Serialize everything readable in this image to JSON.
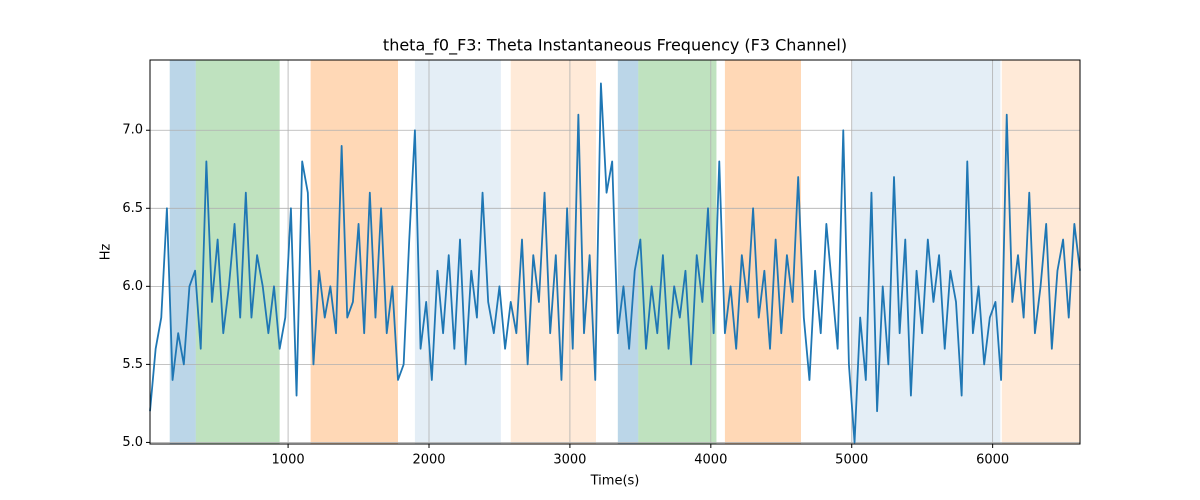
{
  "chart_data": {
    "type": "line",
    "title": "theta_f0_F3: Theta Instantaneous Frequency (F3 Channel)",
    "x_label": "Time(s)",
    "y_label": "Hz",
    "xlim": [
      20,
      6620
    ],
    "ylim": [
      4.99,
      7.45
    ],
    "xticks": [
      1000,
      2000,
      3000,
      4000,
      5000,
      6000
    ],
    "yticks": [
      {
        "value": 5,
        "label": "5.0"
      },
      5.5,
      {
        "value": 6,
        "label": "6.0"
      },
      6.5,
      {
        "value": 7,
        "label": "7.0"
      }
    ],
    "grid": true,
    "bands": [
      {
        "start": 160,
        "end": 345,
        "color": "#1f77b4",
        "opacity": 0.3
      },
      {
        "start": 345,
        "end": 940,
        "color": "#2ca02c",
        "opacity": 0.3
      },
      {
        "start": 1160,
        "end": 1780,
        "color": "#ff7f0e",
        "opacity": 0.3
      },
      {
        "start": 1900,
        "end": 2510,
        "color": "#1f77b4",
        "opacity": 0.12
      },
      {
        "start": 2580,
        "end": 3185,
        "color": "#ff7f0e",
        "opacity": 0.16
      },
      {
        "start": 3340,
        "end": 3485,
        "color": "#1f77b4",
        "opacity": 0.3
      },
      {
        "start": 3485,
        "end": 4040,
        "color": "#2ca02c",
        "opacity": 0.3
      },
      {
        "start": 4100,
        "end": 4640,
        "color": "#ff7f0e",
        "opacity": 0.3
      },
      {
        "start": 5000,
        "end": 6055,
        "color": "#1f77b4",
        "opacity": 0.12
      },
      {
        "start": 6065,
        "end": 6620,
        "color": "#ff7f0e",
        "opacity": 0.16
      }
    ],
    "x": [
      20,
      60,
      100,
      140,
      180,
      220,
      260,
      300,
      340,
      380,
      420,
      460,
      500,
      540,
      580,
      620,
      660,
      700,
      740,
      780,
      820,
      860,
      900,
      940,
      980,
      1020,
      1060,
      1100,
      1140,
      1180,
      1220,
      1260,
      1300,
      1340,
      1380,
      1420,
      1460,
      1500,
      1540,
      1580,
      1620,
      1660,
      1700,
      1740,
      1780,
      1820,
      1860,
      1900,
      1940,
      1980,
      2020,
      2060,
      2100,
      2140,
      2180,
      2220,
      2260,
      2300,
      2340,
      2380,
      2420,
      2460,
      2500,
      2540,
      2580,
      2620,
      2660,
      2700,
      2740,
      2780,
      2820,
      2860,
      2900,
      2940,
      2980,
      3020,
      3060,
      3100,
      3140,
      3180,
      3220,
      3260,
      3300,
      3340,
      3380,
      3420,
      3460,
      3500,
      3540,
      3580,
      3620,
      3660,
      3700,
      3740,
      3780,
      3820,
      3860,
      3900,
      3940,
      3980,
      4020,
      4060,
      4100,
      4140,
      4180,
      4220,
      4260,
      4300,
      4340,
      4380,
      4420,
      4460,
      4500,
      4540,
      4580,
      4620,
      4660,
      4700,
      4740,
      4780,
      4820,
      4860,
      4900,
      4940,
      4980,
      5020,
      5060,
      5100,
      5140,
      5180,
      5220,
      5260,
      5300,
      5340,
      5380,
      5420,
      5460,
      5500,
      5540,
      5580,
      5620,
      5660,
      5700,
      5740,
      5780,
      5820,
      5860,
      5900,
      5940,
      5980,
      6020,
      6060,
      6100,
      6140,
      6180,
      6220,
      6260,
      6300,
      6340,
      6380,
      6420,
      6460,
      6500,
      6540,
      6580,
      6620
    ],
    "series": [
      {
        "name": "theta_f0_F3",
        "color": "#1f77b4",
        "values": [
          5.2,
          5.6,
          5.8,
          6.5,
          5.4,
          5.7,
          5.5,
          6.0,
          6.1,
          5.6,
          6.8,
          5.9,
          6.3,
          5.7,
          6.0,
          6.4,
          5.8,
          6.6,
          5.8,
          6.2,
          6.0,
          5.7,
          6.0,
          5.6,
          5.8,
          6.5,
          5.3,
          6.8,
          6.6,
          5.5,
          6.1,
          5.8,
          6.0,
          5.7,
          6.9,
          5.8,
          5.9,
          6.4,
          5.7,
          6.6,
          5.8,
          6.5,
          5.7,
          6.0,
          5.4,
          5.5,
          6.3,
          7.0,
          5.6,
          5.9,
          5.4,
          6.1,
          5.7,
          6.2,
          5.6,
          6.3,
          5.5,
          6.1,
          5.8,
          6.6,
          5.9,
          5.7,
          6.0,
          5.6,
          5.9,
          5.7,
          6.3,
          5.5,
          6.2,
          5.9,
          6.6,
          5.7,
          6.2,
          5.4,
          6.5,
          5.6,
          7.1,
          5.7,
          6.2,
          5.4,
          7.3,
          6.6,
          6.8,
          5.7,
          6.0,
          5.6,
          6.1,
          6.3,
          5.6,
          6.0,
          5.7,
          6.2,
          5.6,
          6.0,
          5.8,
          6.1,
          5.5,
          6.2,
          5.9,
          6.5,
          5.7,
          6.8,
          5.7,
          6.0,
          5.6,
          6.2,
          5.9,
          6.5,
          5.8,
          6.1,
          5.6,
          6.3,
          5.7,
          6.2,
          5.9,
          6.7,
          5.8,
          5.4,
          6.1,
          5.7,
          6.4,
          6.0,
          5.6,
          7.0,
          5.5,
          5.0,
          5.8,
          5.4,
          6.6,
          5.2,
          6.0,
          5.5,
          6.7,
          5.7,
          6.3,
          5.3,
          6.1,
          5.7,
          6.3,
          5.9,
          6.2,
          5.6,
          6.1,
          5.9,
          5.3,
          6.8,
          5.7,
          6.0,
          5.5,
          5.8,
          5.9,
          5.4,
          7.1,
          5.9,
          6.2,
          5.8,
          6.6,
          5.7,
          6.0,
          6.4,
          5.6,
          6.1,
          6.3,
          5.8,
          6.4,
          6.1
        ]
      }
    ]
  }
}
